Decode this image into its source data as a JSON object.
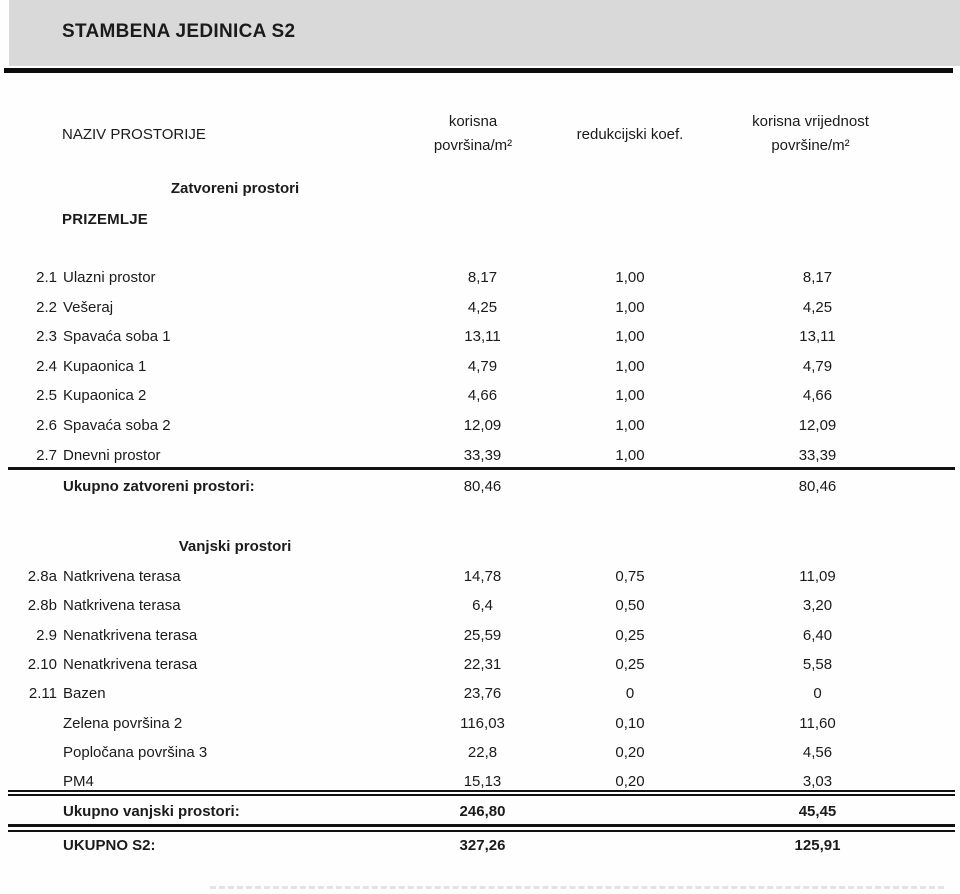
{
  "page": {
    "title": "STAMBENA JEDINICA S2"
  },
  "table": {
    "header": {
      "name_col": "NAZIV PROSTORIJE",
      "area_col_line1": "korisna",
      "area_col_line2": "površina/m²",
      "koef_col": "redukcijski koef.",
      "value_col_line1": "korisna vrijednost",
      "value_col_line2": "površine/m²"
    },
    "sections": [
      {
        "heading": "Zatvoreni prostori",
        "subheading": "PRIZEMLJE",
        "rows": [
          {
            "id": "2.1",
            "name": "Ulazni prostor",
            "area": "8,17",
            "koef": "1,00",
            "value": "8,17"
          },
          {
            "id": "2.2",
            "name": "Vešeraj",
            "area": "4,25",
            "koef": "1,00",
            "value": "4,25"
          },
          {
            "id": "2.3",
            "name": "Spavaća soba 1",
            "area": "13,11",
            "koef": "1,00",
            "value": "13,11"
          },
          {
            "id": "2.4",
            "name": "Kupaonica 1",
            "area": "4,79",
            "koef": "1,00",
            "value": "4,79"
          },
          {
            "id": "2.5",
            "name": "Kupaonica 2",
            "area": "4,66",
            "koef": "1,00",
            "value": "4,66"
          },
          {
            "id": "2.6",
            "name": "Spavaća soba 2",
            "area": "12,09",
            "koef": "1,00",
            "value": "12,09"
          },
          {
            "id": "2.7",
            "name": "Dnevni prostor",
            "area": "33,39",
            "koef": "1,00",
            "value": "33,39"
          }
        ],
        "total": {
          "label": "Ukupno zatvoreni prostori:",
          "area": "80,46",
          "koef": "",
          "value": "80,46"
        }
      },
      {
        "heading": "Vanjski prostori",
        "subheading": "",
        "rows": [
          {
            "id": "2.8a",
            "name": "Natkrivena terasa",
            "area": "14,78",
            "koef": "0,75",
            "value": "11,09"
          },
          {
            "id": "2.8b",
            "name": "Natkrivena terasa",
            "area": "6,4",
            "koef": "0,50",
            "value": "3,20"
          },
          {
            "id": "2.9",
            "name": "Nenatkrivena terasa",
            "area": "25,59",
            "koef": "0,25",
            "value": "6,40"
          },
          {
            "id": "2.10",
            "name": "Nenatkrivena terasa",
            "area": "22,31",
            "koef": "0,25",
            "value": "5,58"
          },
          {
            "id": "2.11",
            "name": "Bazen",
            "area": "23,76",
            "koef": "0",
            "value": "0"
          },
          {
            "id": "",
            "name": "Zelena površina 2",
            "area": "116,03",
            "koef": "0,10",
            "value": "11,60"
          },
          {
            "id": "",
            "name": "Popločana površina 3",
            "area": "22,8",
            "koef": "0,20",
            "value": "4,56"
          },
          {
            "id": "",
            "name": "PM4",
            "area": "15,13",
            "koef": "0,20",
            "value": "3,03"
          }
        ],
        "total": {
          "label": "Ukupno vanjski prostori:",
          "area": "246,80",
          "koef": "",
          "value": "45,45"
        }
      }
    ],
    "grand_total": {
      "label": "UKUPNO S2:",
      "area": "327,26",
      "koef": "",
      "value": "125,91"
    }
  },
  "colors": {
    "header_bar_bg": "#d9d9d9",
    "rule": "#111111",
    "text": "#1b1b1b"
  }
}
